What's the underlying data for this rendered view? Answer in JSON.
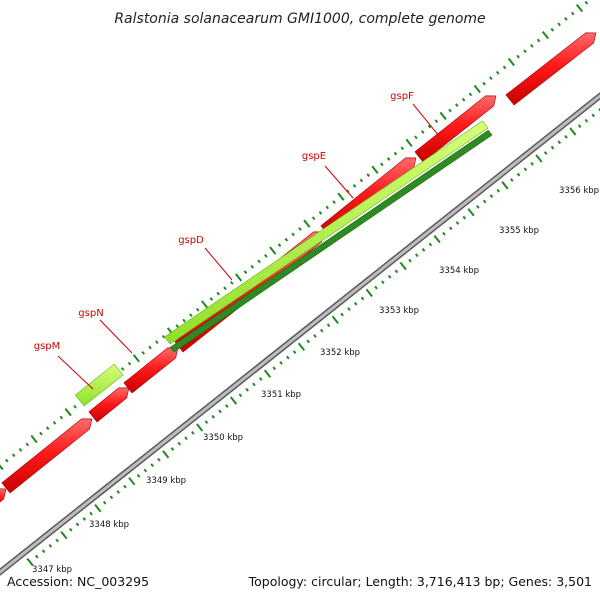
{
  "title": "Ralstonia solanacearum GMI1000, complete genome",
  "footer": {
    "accession": "Accession: NC_003295",
    "summary": "Topology: circular; Length: 3,716,413 bp; Genes: 3,501"
  },
  "colors": {
    "cds_forward": "#ff1a1a",
    "gene_highlight": "#a6f03c",
    "gene_highlight_dark": "#2e8b22",
    "backbone": "#9a9a9a",
    "ticks": "#1f8a1f",
    "label": "#d40000"
  },
  "gene_labels": [
    "gspM",
    "gspN",
    "gspD",
    "gspE",
    "gspF"
  ],
  "scale_labels": [
    "3347 kbp",
    "3348 kbp",
    "3349 kbp",
    "3350 kbp",
    "3351 kbp",
    "3352 kbp",
    "3353 kbp",
    "3354 kbp",
    "3355 kbp",
    "3356 kbp"
  ]
}
